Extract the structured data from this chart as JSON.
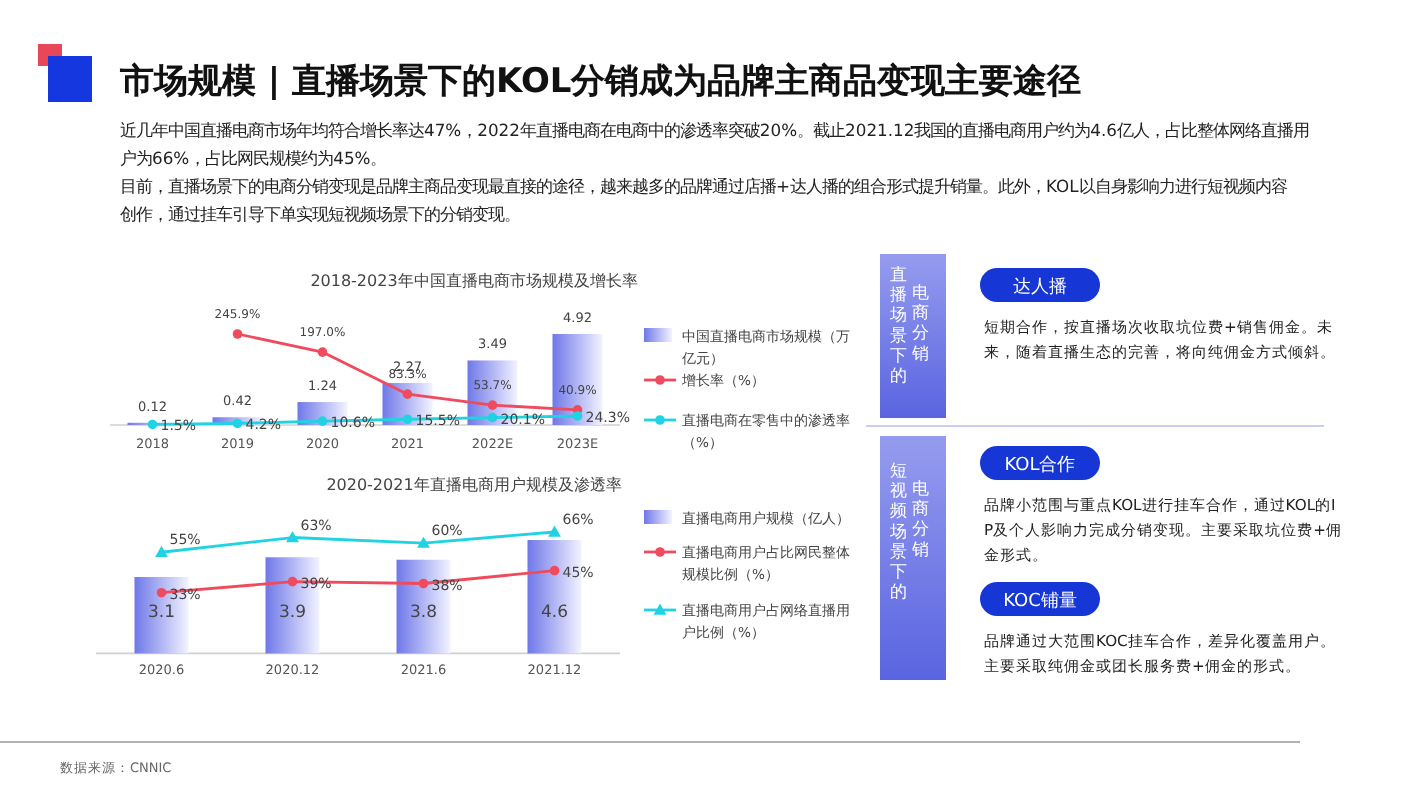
{
  "chart_data": [
    {
      "type": "other",
      "title": "市场规模 | 直播场景下的KOL分销成为品牌主商品变现主要途径",
      "annotations": [
        "近几年中国直播电商市场年均符合增长率达47%，2022年直播电商在电商中的渗透率突破20%。截止2021.12我国的直播电商用户约为4.6亿人，占比整体网络直播用户为66%，占比网民规模约为45%。",
        "目前，直播场景下的电商分销变现是品牌主商品变现最直接的途径，越来越多的品牌通过店播+达人播的组合形式提升销量。此外，KOL以自身影响力进行短视频内容创作，通过挂车引导下单实现短视频场景下的分销变现。"
      ]
    },
    {
      "type": "bar",
      "title": "2018-2023年中国直播电商市场规模及增长率",
      "categories": [
        "2018",
        "2019",
        "2020",
        "2021",
        "2022E",
        "2023E"
      ],
      "legend": "right",
      "series": [
        {
          "type": "bar",
          "name": "中国直播电商市场规模（万亿元）",
          "color": "#6f78e8",
          "values": [
            0.12,
            0.42,
            1.24,
            2.27,
            3.49,
            4.92
          ],
          "value_labels": [
            "0.12",
            "0.42",
            "1.24",
            "2.27",
            "3.49",
            "4.92"
          ]
        },
        {
          "type": "line",
          "name": "增长率（%）",
          "color": "#f04a5e",
          "axis": "y2",
          "marker": "circle",
          "values": [
            null,
            245.9,
            197.0,
            83.3,
            53.7,
            40.9
          ],
          "value_labels": [
            null,
            "245.9%",
            "197.0%",
            "83.3%",
            "53.7%",
            "40.9%"
          ]
        },
        {
          "type": "line",
          "name": "直播电商在零售中的渗透率（%）",
          "color": "#1fd3e3",
          "axis": "y2",
          "marker": "circle",
          "values": [
            1.5,
            4.2,
            10.6,
            15.5,
            20.1,
            24.3
          ],
          "value_labels": [
            "1.5%",
            "4.2%",
            "10.6%",
            "15.5%",
            "20.1%",
            "24.3%"
          ]
        }
      ]
    },
    {
      "type": "bar",
      "title": "2020-2021年直播电商用户规模及渗透率",
      "categories": [
        "2020.6",
        "2020.12",
        "2021.6",
        "2021.12"
      ],
      "legend": "right",
      "annotations": [
        "数据来源：CNNIC"
      ],
      "series": [
        {
          "type": "bar",
          "name": "直播电商用户规模（亿人）",
          "color": "#6f78e8",
          "values": [
            3.1,
            3.9,
            3.8,
            4.6
          ],
          "value_labels": [
            "3.1",
            "3.9",
            "3.8",
            "4.6"
          ]
        },
        {
          "type": "line",
          "name": "直播电商用户占比网民整体规模比例（%）",
          "color": "#f04a5e",
          "axis": "y2",
          "marker": "circle",
          "values": [
            33,
            39,
            38,
            45
          ],
          "value_labels": [
            "33%",
            "39%",
            "38%",
            "45%"
          ]
        },
        {
          "type": "line",
          "name": "直播电商用户占网络直播用户比例（%）",
          "color": "#1fd3e3",
          "axis": "y2",
          "marker": "triangle",
          "values": [
            55,
            63,
            60,
            66
          ],
          "value_labels": [
            "55%",
            "63%",
            "60%",
            "66%"
          ]
        }
      ]
    },
    {
      "type": "other",
      "annotations": [
        "直播场景下的",
        "电商分销",
        "达人播",
        "短期合作，按直播场次收取坑位费+销售佣金。未来，随着直播生态的完善，将向纯佣金方式倾斜。",
        "短视频场景下的",
        "电商分销",
        "KOL合作",
        "品牌小范围与重点KOL进行挂车合作，通过KOL的IP及个人影响力完成分销变现。主要采取坑位费+佣金形式。",
        "KOC铺量",
        "品牌通过大范围KOC挂车合作，差异化覆盖用户。主要采取纯佣金或团长服务费+佣金的形式。"
      ]
    }
  ]
}
